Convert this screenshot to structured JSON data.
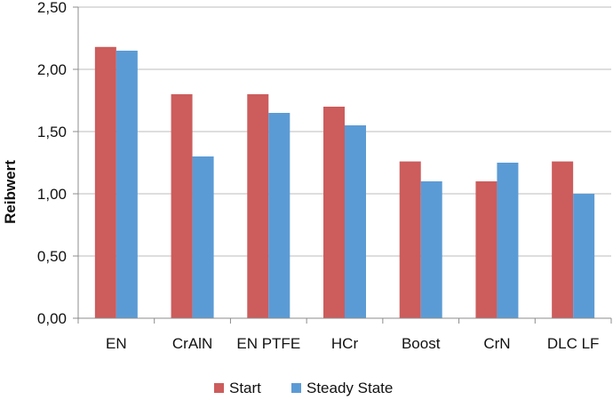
{
  "chart_data": {
    "type": "bar",
    "title": "",
    "xlabel": "",
    "ylabel": "Reibwert",
    "ylim": [
      0,
      2.5
    ],
    "yticks": [
      "0,00",
      "0,50",
      "1,00",
      "1,50",
      "2,00",
      "2,50"
    ],
    "categories": [
      "EN",
      "CrAlN",
      "EN PTFE",
      "HCr",
      "Boost",
      "CrN",
      "DLC LF"
    ],
    "series": [
      {
        "name": "Start",
        "color": "#CD5C5C",
        "values": [
          2.18,
          1.8,
          1.8,
          1.7,
          1.26,
          1.1,
          1.26
        ]
      },
      {
        "name": "Steady State",
        "color": "#5B9BD5",
        "values": [
          2.15,
          1.3,
          1.65,
          1.55,
          1.1,
          1.25,
          1.0
        ]
      }
    ],
    "grid": true,
    "legend_position": "bottom"
  }
}
